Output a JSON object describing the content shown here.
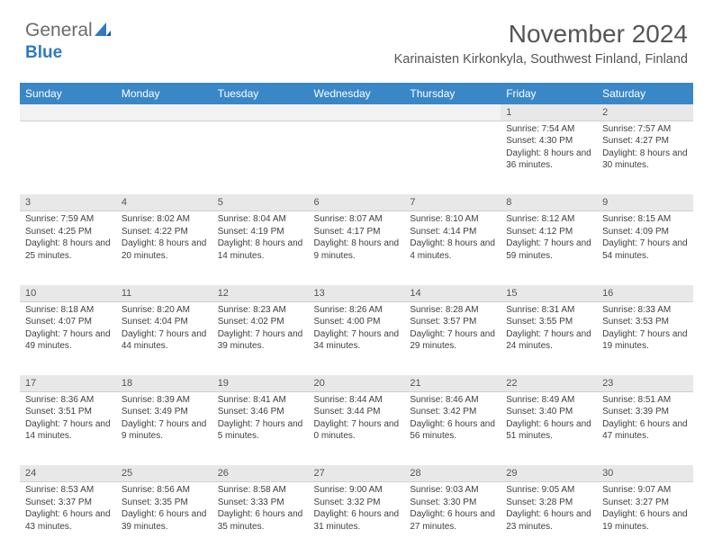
{
  "brand": {
    "part1": "General",
    "part2": "Blue"
  },
  "title": "November 2024",
  "location": "Karinaisten Kirkonkyla, Southwest Finland, Finland",
  "colors": {
    "header_bg": "#3a87c8",
    "header_text": "#ffffff",
    "daynum_bg": "#e8e8e8",
    "body_text": "#404040",
    "brand_gray": "#6b6b6b",
    "brand_blue": "#2f7ac0"
  },
  "weekdays": [
    "Sunday",
    "Monday",
    "Tuesday",
    "Wednesday",
    "Thursday",
    "Friday",
    "Saturday"
  ],
  "weeks": [
    [
      null,
      null,
      null,
      null,
      null,
      {
        "n": "1",
        "sr": "7:54 AM",
        "ss": "4:30 PM",
        "dl": "8 hours and 36 minutes."
      },
      {
        "n": "2",
        "sr": "7:57 AM",
        "ss": "4:27 PM",
        "dl": "8 hours and 30 minutes."
      }
    ],
    [
      {
        "n": "3",
        "sr": "7:59 AM",
        "ss": "4:25 PM",
        "dl": "8 hours and 25 minutes."
      },
      {
        "n": "4",
        "sr": "8:02 AM",
        "ss": "4:22 PM",
        "dl": "8 hours and 20 minutes."
      },
      {
        "n": "5",
        "sr": "8:04 AM",
        "ss": "4:19 PM",
        "dl": "8 hours and 14 minutes."
      },
      {
        "n": "6",
        "sr": "8:07 AM",
        "ss": "4:17 PM",
        "dl": "8 hours and 9 minutes."
      },
      {
        "n": "7",
        "sr": "8:10 AM",
        "ss": "4:14 PM",
        "dl": "8 hours and 4 minutes."
      },
      {
        "n": "8",
        "sr": "8:12 AM",
        "ss": "4:12 PM",
        "dl": "7 hours and 59 minutes."
      },
      {
        "n": "9",
        "sr": "8:15 AM",
        "ss": "4:09 PM",
        "dl": "7 hours and 54 minutes."
      }
    ],
    [
      {
        "n": "10",
        "sr": "8:18 AM",
        "ss": "4:07 PM",
        "dl": "7 hours and 49 minutes."
      },
      {
        "n": "11",
        "sr": "8:20 AM",
        "ss": "4:04 PM",
        "dl": "7 hours and 44 minutes."
      },
      {
        "n": "12",
        "sr": "8:23 AM",
        "ss": "4:02 PM",
        "dl": "7 hours and 39 minutes."
      },
      {
        "n": "13",
        "sr": "8:26 AM",
        "ss": "4:00 PM",
        "dl": "7 hours and 34 minutes."
      },
      {
        "n": "14",
        "sr": "8:28 AM",
        "ss": "3:57 PM",
        "dl": "7 hours and 29 minutes."
      },
      {
        "n": "15",
        "sr": "8:31 AM",
        "ss": "3:55 PM",
        "dl": "7 hours and 24 minutes."
      },
      {
        "n": "16",
        "sr": "8:33 AM",
        "ss": "3:53 PM",
        "dl": "7 hours and 19 minutes."
      }
    ],
    [
      {
        "n": "17",
        "sr": "8:36 AM",
        "ss": "3:51 PM",
        "dl": "7 hours and 14 minutes."
      },
      {
        "n": "18",
        "sr": "8:39 AM",
        "ss": "3:49 PM",
        "dl": "7 hours and 9 minutes."
      },
      {
        "n": "19",
        "sr": "8:41 AM",
        "ss": "3:46 PM",
        "dl": "7 hours and 5 minutes."
      },
      {
        "n": "20",
        "sr": "8:44 AM",
        "ss": "3:44 PM",
        "dl": "7 hours and 0 minutes."
      },
      {
        "n": "21",
        "sr": "8:46 AM",
        "ss": "3:42 PM",
        "dl": "6 hours and 56 minutes."
      },
      {
        "n": "22",
        "sr": "8:49 AM",
        "ss": "3:40 PM",
        "dl": "6 hours and 51 minutes."
      },
      {
        "n": "23",
        "sr": "8:51 AM",
        "ss": "3:39 PM",
        "dl": "6 hours and 47 minutes."
      }
    ],
    [
      {
        "n": "24",
        "sr": "8:53 AM",
        "ss": "3:37 PM",
        "dl": "6 hours and 43 minutes."
      },
      {
        "n": "25",
        "sr": "8:56 AM",
        "ss": "3:35 PM",
        "dl": "6 hours and 39 minutes."
      },
      {
        "n": "26",
        "sr": "8:58 AM",
        "ss": "3:33 PM",
        "dl": "6 hours and 35 minutes."
      },
      {
        "n": "27",
        "sr": "9:00 AM",
        "ss": "3:32 PM",
        "dl": "6 hours and 31 minutes."
      },
      {
        "n": "28",
        "sr": "9:03 AM",
        "ss": "3:30 PM",
        "dl": "6 hours and 27 minutes."
      },
      {
        "n": "29",
        "sr": "9:05 AM",
        "ss": "3:28 PM",
        "dl": "6 hours and 23 minutes."
      },
      {
        "n": "30",
        "sr": "9:07 AM",
        "ss": "3:27 PM",
        "dl": "6 hours and 19 minutes."
      }
    ]
  ],
  "labels": {
    "sunrise": "Sunrise:",
    "sunset": "Sunset:",
    "daylight": "Daylight:"
  }
}
